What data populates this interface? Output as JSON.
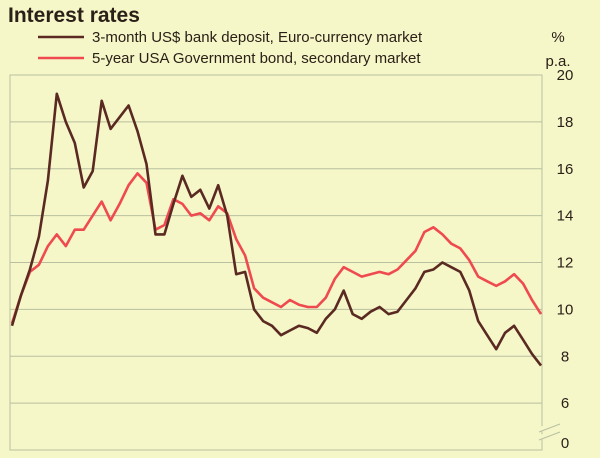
{
  "chart_data": {
    "type": "line",
    "title": "Interest rates",
    "ylabel_line1": "%",
    "ylabel_line2": "p.a.",
    "ylim": [
      0,
      20
    ],
    "yticks": [
      0,
      6,
      8,
      10,
      12,
      14,
      16,
      18,
      20
    ],
    "axis_break": "between 0 and 6",
    "grid": true,
    "legend_position": "top",
    "series": [
      {
        "name": "3-month US$ bank deposit, Euro-currency market",
        "color": "#5a2a22",
        "values": [
          9.3,
          10.6,
          11.7,
          13.1,
          15.5,
          19.2,
          18.0,
          17.1,
          15.2,
          15.9,
          18.9,
          17.7,
          18.2,
          18.7,
          17.6,
          16.2,
          13.2,
          13.2,
          14.5,
          15.7,
          14.8,
          15.1,
          14.3,
          15.3,
          14.0,
          11.5,
          11.6,
          10.0,
          9.5,
          9.3,
          8.9,
          9.1,
          9.3,
          9.2,
          9.0,
          9.6,
          10.0,
          10.8,
          9.8,
          9.6,
          9.9,
          10.1,
          9.8,
          9.9,
          10.4,
          10.9,
          11.6,
          11.7,
          12.0,
          11.8,
          11.6,
          10.8,
          9.5,
          8.9,
          8.3,
          9.0,
          9.3,
          8.7,
          8.1,
          7.6
        ]
      },
      {
        "name": "5-year USA Government bond, secondary market",
        "color": "#ee4a50",
        "values": [
          9.4,
          10.6,
          11.6,
          11.9,
          12.7,
          13.2,
          12.7,
          13.4,
          13.4,
          14.0,
          14.6,
          13.8,
          14.5,
          15.3,
          15.8,
          15.4,
          13.4,
          13.6,
          14.7,
          14.5,
          14.0,
          14.1,
          13.8,
          14.4,
          14.1,
          13.0,
          12.3,
          10.9,
          10.5,
          10.3,
          10.1,
          10.4,
          10.2,
          10.1,
          10.1,
          10.5,
          11.3,
          11.8,
          11.6,
          11.4,
          11.5,
          11.6,
          11.5,
          11.7,
          12.1,
          12.5,
          13.3,
          13.5,
          13.2,
          12.8,
          12.6,
          12.1,
          11.4,
          11.2,
          11.0,
          11.2,
          11.5,
          11.1,
          10.4,
          9.8
        ]
      }
    ]
  }
}
